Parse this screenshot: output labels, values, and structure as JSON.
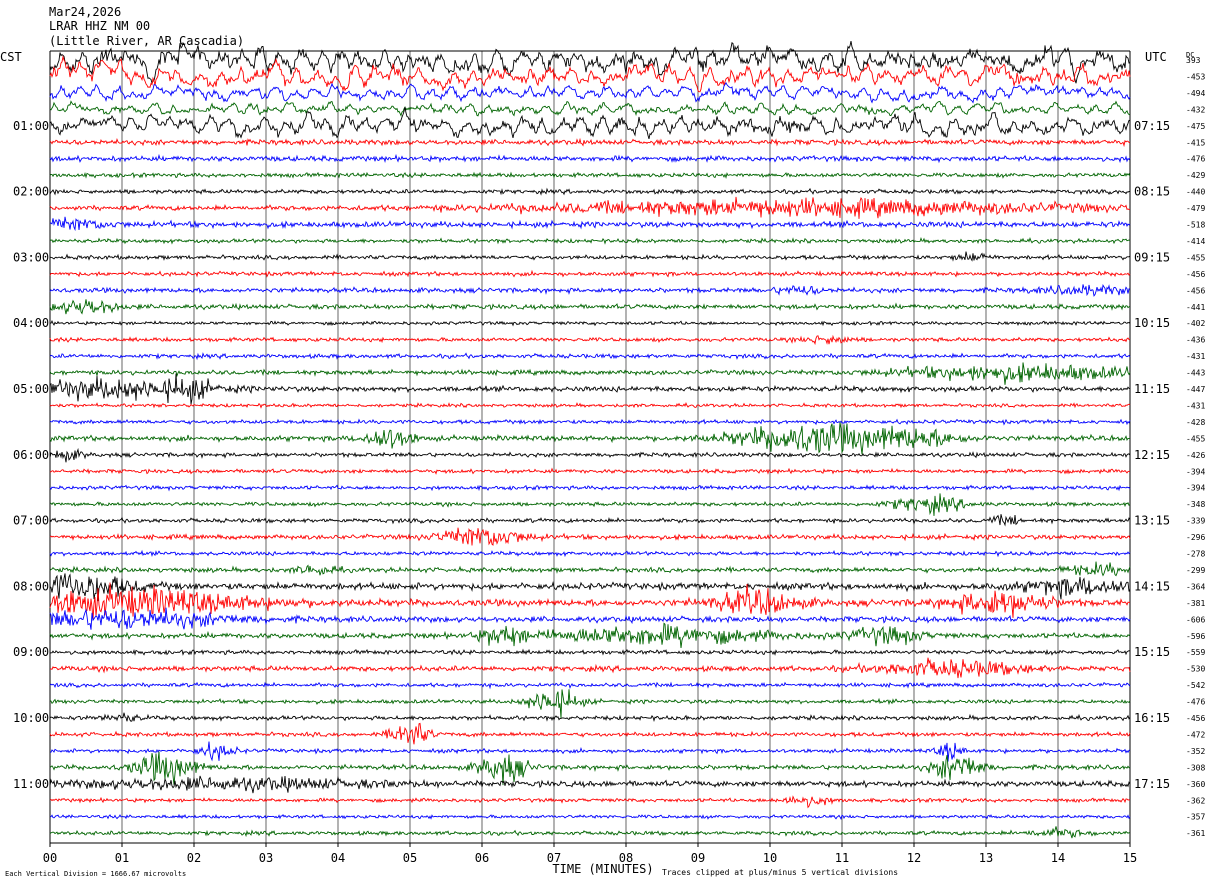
{
  "header": {
    "date": "Mar24,2026",
    "station": "LRAR HHZ NM 00",
    "location": "(Little River, AR Cascadia)"
  },
  "left_axis_title": "CST",
  "right_axis_title": "UTC",
  "dc_label": "DC",
  "footer": {
    "scale_note": "Each Vertical Division = 1666.67 microvolts",
    "x_title": "TIME (MINUTES)",
    "clip_note": "Traces clipped at plus/minus 5 vertical divisions"
  },
  "colors": {
    "trace_cycle": [
      "#000000",
      "#ff0000",
      "#0000ff",
      "#006400"
    ],
    "grid": "#000000"
  },
  "chart_data": {
    "type": "line",
    "description_kind": "helicorder",
    "x_ticks": [
      "00",
      "01",
      "02",
      "03",
      "04",
      "05",
      "06",
      "07",
      "08",
      "09",
      "10",
      "11",
      "12",
      "13",
      "14",
      "15"
    ],
    "xlim": [
      0,
      15
    ],
    "lines_count": 48,
    "minutes_per_line": 15,
    "left_hour_labels": [
      {
        "line": 4,
        "label": "01:00"
      },
      {
        "line": 8,
        "label": "02:00"
      },
      {
        "line": 12,
        "label": "03:00"
      },
      {
        "line": 16,
        "label": "04:00"
      },
      {
        "line": 20,
        "label": "05:00"
      },
      {
        "line": 24,
        "label": "06:00"
      },
      {
        "line": 28,
        "label": "07:00"
      },
      {
        "line": 32,
        "label": "08:00"
      },
      {
        "line": 36,
        "label": "09:00"
      },
      {
        "line": 40,
        "label": "10:00"
      },
      {
        "line": 44,
        "label": "11:00"
      }
    ],
    "right_hour_labels": [
      {
        "line": 4,
        "label": "07:15"
      },
      {
        "line": 8,
        "label": "08:15"
      },
      {
        "line": 12,
        "label": "09:15"
      },
      {
        "line": 16,
        "label": "10:15"
      },
      {
        "line": 20,
        "label": "11:15"
      },
      {
        "line": 24,
        "label": "12:15"
      },
      {
        "line": 28,
        "label": "13:15"
      },
      {
        "line": 32,
        "label": "14:15"
      },
      {
        "line": 36,
        "label": "15:15"
      },
      {
        "line": 40,
        "label": "16:15"
      },
      {
        "line": 44,
        "label": "17:15"
      }
    ],
    "dc_offsets": [
      "393",
      "-453",
      "-494",
      "-432",
      "-475",
      "-415",
      "-476",
      "-429",
      "-440",
      "-479",
      "-518",
      "-414",
      "-455",
      "-456",
      "-456",
      "-441",
      "-402",
      "-436",
      "-431",
      "-443",
      "-447",
      "-431",
      "-428",
      "-455",
      "-426",
      "-394",
      "-394",
      "-348",
      "-339",
      "-296",
      "-278",
      "-299",
      "-364",
      "-381",
      "-606",
      "-596",
      "-559",
      "-530",
      "-542",
      "-476",
      "-456",
      "-472",
      "-352",
      "-308",
      "-360",
      "-362",
      "-357",
      "-361"
    ],
    "trace_activity": [
      {
        "line": 0,
        "base": 6,
        "bursts": []
      },
      {
        "line": 1,
        "base": 5,
        "bursts": []
      },
      {
        "line": 2,
        "base": 3.2,
        "bursts": []
      },
      {
        "line": 3,
        "base": 2.6,
        "bursts": []
      },
      {
        "line": 4,
        "base": 4.5,
        "bursts": [
          [
            9.5,
            2.0,
            4
          ]
        ]
      },
      {
        "line": 5,
        "base": 2.0,
        "bursts": []
      },
      {
        "line": 6,
        "base": 2.0,
        "bursts": []
      },
      {
        "line": 7,
        "base": 1.6,
        "bursts": []
      },
      {
        "line": 8,
        "base": 1.6,
        "bursts": []
      },
      {
        "line": 9,
        "base": 1.8,
        "bursts": [
          [
            10.5,
            4.5,
            6
          ]
        ]
      },
      {
        "line": 10,
        "base": 2.2,
        "bursts": [
          [
            0.3,
            0.6,
            4
          ]
        ]
      },
      {
        "line": 11,
        "base": 1.5,
        "bursts": []
      },
      {
        "line": 12,
        "base": 1.6,
        "bursts": [
          [
            12.8,
            0.3,
            3
          ]
        ]
      },
      {
        "line": 13,
        "base": 1.6,
        "bursts": []
      },
      {
        "line": 14,
        "base": 1.8,
        "bursts": [
          [
            10.4,
            0.4,
            3
          ],
          [
            14.4,
            0.8,
            3
          ]
        ]
      },
      {
        "line": 15,
        "base": 1.8,
        "bursts": [
          [
            0.5,
            0.5,
            6
          ]
        ]
      },
      {
        "line": 16,
        "base": 1.3,
        "bursts": []
      },
      {
        "line": 17,
        "base": 1.5,
        "bursts": [
          [
            10.8,
            0.4,
            3
          ]
        ]
      },
      {
        "line": 18,
        "base": 1.6,
        "bursts": []
      },
      {
        "line": 19,
        "base": 1.8,
        "bursts": [
          [
            13.5,
            2.0,
            6
          ]
        ]
      },
      {
        "line": 20,
        "base": 2.0,
        "bursts": [
          [
            0.8,
            1.6,
            7
          ],
          [
            1.9,
            0.4,
            6
          ]
        ]
      },
      {
        "line": 21,
        "base": 1.3,
        "bursts": []
      },
      {
        "line": 22,
        "base": 1.5,
        "bursts": []
      },
      {
        "line": 23,
        "base": 2.0,
        "bursts": [
          [
            4.7,
            0.4,
            8
          ],
          [
            10.6,
            1.3,
            11
          ],
          [
            12.0,
            0.8,
            6
          ]
        ]
      },
      {
        "line": 24,
        "base": 1.6,
        "bursts": [
          [
            0.2,
            0.3,
            4
          ]
        ]
      },
      {
        "line": 25,
        "base": 1.5,
        "bursts": []
      },
      {
        "line": 26,
        "base": 1.5,
        "bursts": []
      },
      {
        "line": 27,
        "base": 1.5,
        "bursts": [
          [
            12.2,
            0.6,
            6
          ]
        ]
      },
      {
        "line": 28,
        "base": 1.6,
        "bursts": [
          [
            13.3,
            0.3,
            3
          ]
        ]
      },
      {
        "line": 29,
        "base": 1.8,
        "bursts": [
          [
            6.0,
            0.7,
            8
          ]
        ]
      },
      {
        "line": 30,
        "base": 1.5,
        "bursts": []
      },
      {
        "line": 31,
        "base": 1.8,
        "bursts": [
          [
            3.7,
            0.3,
            4
          ],
          [
            14.6,
            0.6,
            4
          ]
        ]
      },
      {
        "line": 32,
        "base": 2.6,
        "bursts": [
          [
            0.4,
            0.9,
            10
          ],
          [
            14.3,
            0.9,
            6
          ]
        ]
      },
      {
        "line": 33,
        "base": 2.6,
        "bursts": [
          [
            1.0,
            2.2,
            10
          ],
          [
            9.8,
            0.7,
            9
          ],
          [
            13.2,
            0.8,
            9
          ]
        ]
      },
      {
        "line": 34,
        "base": 2.2,
        "bursts": [
          [
            1.0,
            1.8,
            7
          ]
        ]
      },
      {
        "line": 35,
        "base": 2.0,
        "bursts": [
          [
            6.3,
            0.4,
            7
          ],
          [
            8.4,
            1.8,
            7
          ],
          [
            11.6,
            0.6,
            6
          ]
        ]
      },
      {
        "line": 36,
        "base": 1.6,
        "bursts": []
      },
      {
        "line": 37,
        "base": 2.0,
        "bursts": [
          [
            12.5,
            1.2,
            6
          ]
        ]
      },
      {
        "line": 38,
        "base": 1.5,
        "bursts": []
      },
      {
        "line": 39,
        "base": 1.5,
        "bursts": [
          [
            7.0,
            0.4,
            11
          ]
        ]
      },
      {
        "line": 40,
        "base": 1.6,
        "bursts": [
          [
            1.0,
            0.3,
            3
          ]
        ]
      },
      {
        "line": 41,
        "base": 1.6,
        "bursts": [
          [
            5.0,
            0.3,
            11
          ]
        ]
      },
      {
        "line": 42,
        "base": 1.5,
        "bursts": [
          [
            2.3,
            0.3,
            6
          ],
          [
            12.5,
            0.2,
            7
          ]
        ]
      },
      {
        "line": 43,
        "base": 1.8,
        "bursts": [
          [
            1.6,
            0.5,
            11
          ],
          [
            6.3,
            0.4,
            11
          ],
          [
            12.6,
            0.4,
            11
          ]
        ]
      },
      {
        "line": 44,
        "base": 2.2,
        "bursts": [
          [
            2.5,
            2.5,
            4
          ]
        ]
      },
      {
        "line": 45,
        "base": 1.4,
        "bursts": [
          [
            10.5,
            0.4,
            4
          ]
        ]
      },
      {
        "line": 46,
        "base": 1.3,
        "bursts": []
      },
      {
        "line": 47,
        "base": 1.5,
        "bursts": [
          [
            14.0,
            0.5,
            3
          ]
        ]
      }
    ]
  }
}
